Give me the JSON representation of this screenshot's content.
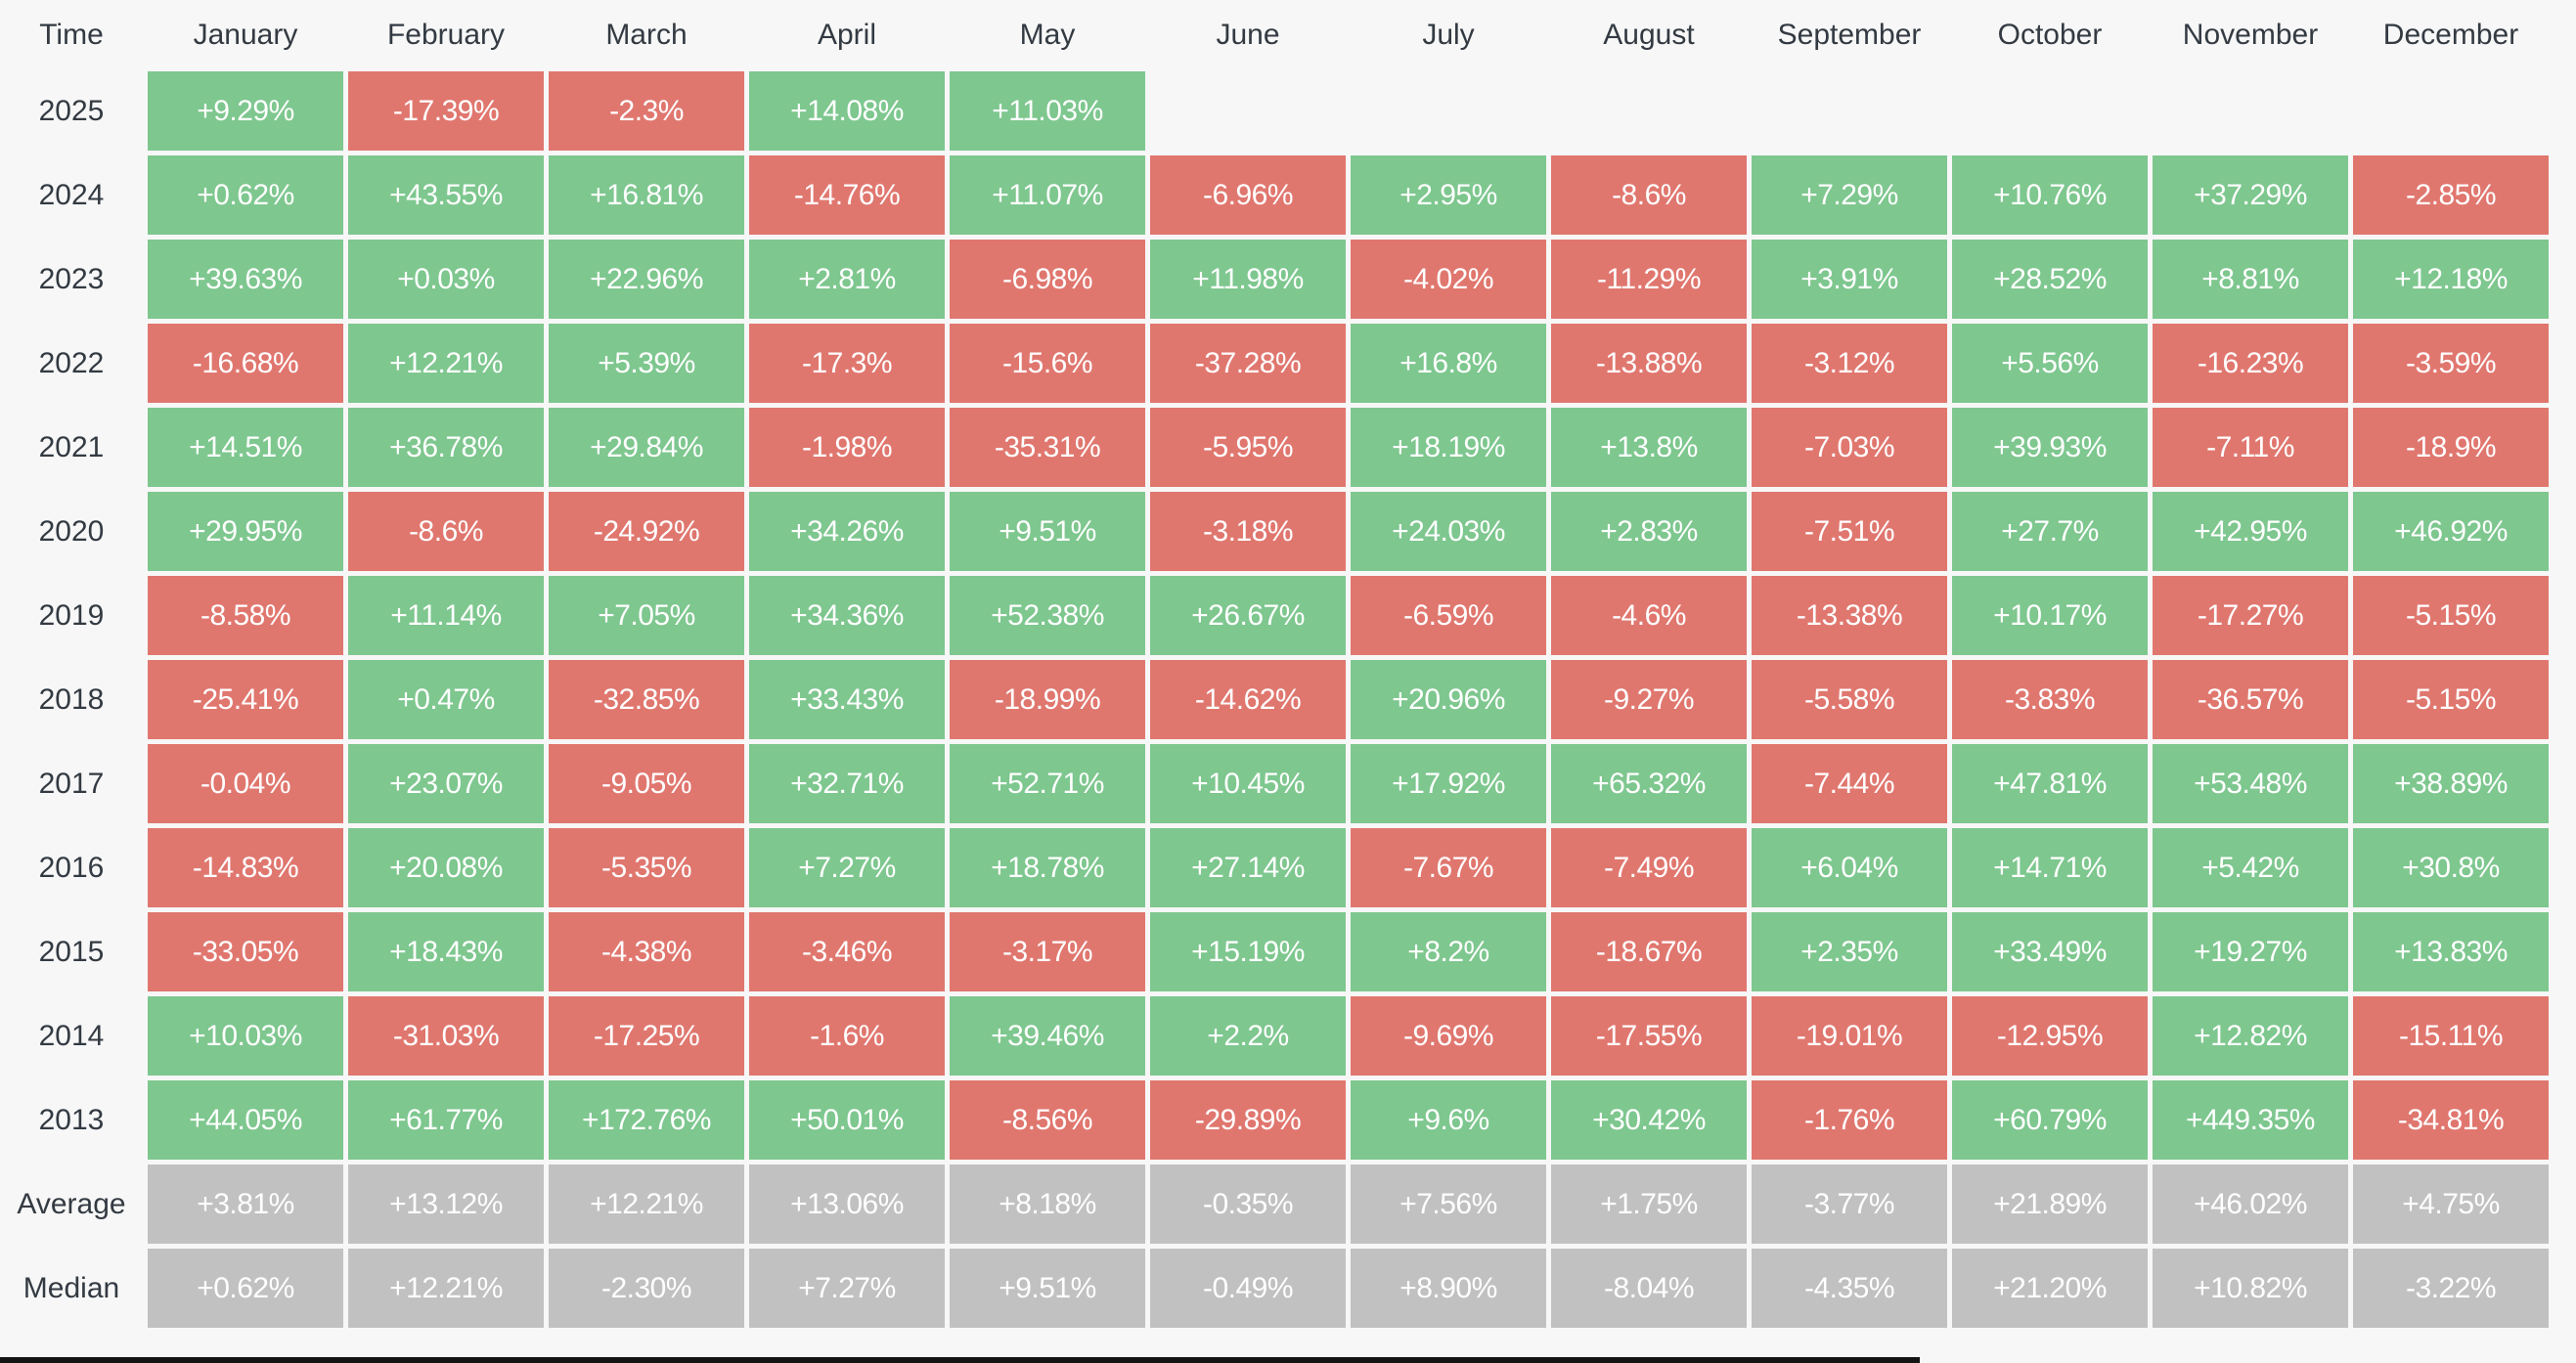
{
  "colors": {
    "positive_green": "#7ec78f",
    "negative_red": "#e0776f",
    "summary_gray": "#c1c1c1",
    "page_background": "#f7f7f7",
    "cell_text": "#ffffff",
    "header_text": "#333a42"
  },
  "chart_data": {
    "type": "heatmap",
    "corner_label": "Time",
    "columns": [
      "January",
      "February",
      "March",
      "April",
      "May",
      "June",
      "July",
      "August",
      "September",
      "October",
      "November",
      "December"
    ],
    "rows": [
      {
        "label": "2025",
        "kind": "year",
        "cells": [
          "+9.29%",
          "-17.39%",
          "-2.3%",
          "+14.08%",
          "+11.03%",
          "",
          "",
          "",
          "",
          "",
          "",
          ""
        ]
      },
      {
        "label": "2024",
        "kind": "year",
        "cells": [
          "+0.62%",
          "+43.55%",
          "+16.81%",
          "-14.76%",
          "+11.07%",
          "-6.96%",
          "+2.95%",
          "-8.6%",
          "+7.29%",
          "+10.76%",
          "+37.29%",
          "-2.85%"
        ]
      },
      {
        "label": "2023",
        "kind": "year",
        "cells": [
          "+39.63%",
          "+0.03%",
          "+22.96%",
          "+2.81%",
          "-6.98%",
          "+11.98%",
          "-4.02%",
          "-11.29%",
          "+3.91%",
          "+28.52%",
          "+8.81%",
          "+12.18%"
        ]
      },
      {
        "label": "2022",
        "kind": "year",
        "cells": [
          "-16.68%",
          "+12.21%",
          "+5.39%",
          "-17.3%",
          "-15.6%",
          "-37.28%",
          "+16.8%",
          "-13.88%",
          "-3.12%",
          "+5.56%",
          "-16.23%",
          "-3.59%"
        ]
      },
      {
        "label": "2021",
        "kind": "year",
        "cells": [
          "+14.51%",
          "+36.78%",
          "+29.84%",
          "-1.98%",
          "-35.31%",
          "-5.95%",
          "+18.19%",
          "+13.8%",
          "-7.03%",
          "+39.93%",
          "-7.11%",
          "-18.9%"
        ]
      },
      {
        "label": "2020",
        "kind": "year",
        "cells": [
          "+29.95%",
          "-8.6%",
          "-24.92%",
          "+34.26%",
          "+9.51%",
          "-3.18%",
          "+24.03%",
          "+2.83%",
          "-7.51%",
          "+27.7%",
          "+42.95%",
          "+46.92%"
        ]
      },
      {
        "label": "2019",
        "kind": "year",
        "cells": [
          "-8.58%",
          "+11.14%",
          "+7.05%",
          "+34.36%",
          "+52.38%",
          "+26.67%",
          "-6.59%",
          "-4.6%",
          "-13.38%",
          "+10.17%",
          "-17.27%",
          "-5.15%"
        ]
      },
      {
        "label": "2018",
        "kind": "year",
        "cells": [
          "-25.41%",
          "+0.47%",
          "-32.85%",
          "+33.43%",
          "-18.99%",
          "-14.62%",
          "+20.96%",
          "-9.27%",
          "-5.58%",
          "-3.83%",
          "-36.57%",
          "-5.15%"
        ]
      },
      {
        "label": "2017",
        "kind": "year",
        "cells": [
          "-0.04%",
          "+23.07%",
          "-9.05%",
          "+32.71%",
          "+52.71%",
          "+10.45%",
          "+17.92%",
          "+65.32%",
          "-7.44%",
          "+47.81%",
          "+53.48%",
          "+38.89%"
        ]
      },
      {
        "label": "2016",
        "kind": "year",
        "cells": [
          "-14.83%",
          "+20.08%",
          "-5.35%",
          "+7.27%",
          "+18.78%",
          "+27.14%",
          "-7.67%",
          "-7.49%",
          "+6.04%",
          "+14.71%",
          "+5.42%",
          "+30.8%"
        ]
      },
      {
        "label": "2015",
        "kind": "year",
        "cells": [
          "-33.05%",
          "+18.43%",
          "-4.38%",
          "-3.46%",
          "-3.17%",
          "+15.19%",
          "+8.2%",
          "-18.67%",
          "+2.35%",
          "+33.49%",
          "+19.27%",
          "+13.83%"
        ]
      },
      {
        "label": "2014",
        "kind": "year",
        "cells": [
          "+10.03%",
          "-31.03%",
          "-17.25%",
          "-1.6%",
          "+39.46%",
          "+2.2%",
          "-9.69%",
          "-17.55%",
          "-19.01%",
          "-12.95%",
          "+12.82%",
          "-15.11%"
        ]
      },
      {
        "label": "2013",
        "kind": "year",
        "cells": [
          "+44.05%",
          "+61.77%",
          "+172.76%",
          "+50.01%",
          "-8.56%",
          "-29.89%",
          "+9.6%",
          "+30.42%",
          "-1.76%",
          "+60.79%",
          "+449.35%",
          "-34.81%"
        ]
      },
      {
        "label": "Average",
        "kind": "summary",
        "cells": [
          "+3.81%",
          "+13.12%",
          "+12.21%",
          "+13.06%",
          "+8.18%",
          "-0.35%",
          "+7.56%",
          "+1.75%",
          "-3.77%",
          "+21.89%",
          "+46.02%",
          "+4.75%"
        ]
      },
      {
        "label": "Median",
        "kind": "summary",
        "cells": [
          "+0.62%",
          "+12.21%",
          "-2.30%",
          "+7.27%",
          "+9.51%",
          "-0.49%",
          "+8.90%",
          "-8.04%",
          "-4.35%",
          "+21.20%",
          "+10.82%",
          "-3.22%"
        ]
      }
    ]
  }
}
